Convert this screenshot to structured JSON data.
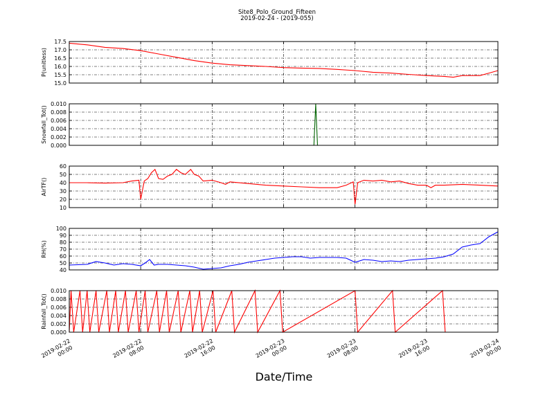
{
  "figure": {
    "title_line1": "Site8_Polo_Ground_Fifteen",
    "title_line2": "2019-02-24 - (2019-055)",
    "xlabel": "Date/Time"
  },
  "chart_data": {
    "type": "line",
    "grid": true,
    "x_ticks": [
      {
        "t": 0,
        "line1": "2019-02-22",
        "line2": "00:00"
      },
      {
        "t": 8,
        "line1": "2019-02-22",
        "line2": "08:00"
      },
      {
        "t": 16,
        "line1": "2019-02-22",
        "line2": "16:00"
      },
      {
        "t": 24,
        "line1": "2019-02-23",
        "line2": "00:00"
      },
      {
        "t": 32,
        "line1": "2019-02-23",
        "line2": "08:00"
      },
      {
        "t": 40,
        "line1": "2019-02-23",
        "line2": "16:00"
      },
      {
        "t": 48,
        "line1": "2019-02-24",
        "line2": "00:00"
      }
    ],
    "panels": [
      {
        "ylabel": "P(unitless)",
        "ylim": [
          15.0,
          17.5
        ],
        "color": "#ff0000",
        "yticks": [
          "15.0",
          "15.5",
          "16.0",
          "16.5",
          "17.0",
          "17.5"
        ],
        "points": [
          [
            0,
            17.4
          ],
          [
            2,
            17.3
          ],
          [
            4,
            17.15
          ],
          [
            6,
            17.08
          ],
          [
            8,
            16.95
          ],
          [
            10,
            16.75
          ],
          [
            12,
            16.55
          ],
          [
            14,
            16.35
          ],
          [
            16,
            16.2
          ],
          [
            18,
            16.1
          ],
          [
            20,
            16.05
          ],
          [
            22,
            16.0
          ],
          [
            24,
            15.93
          ],
          [
            26,
            15.9
          ],
          [
            28,
            15.88
          ],
          [
            30,
            15.82
          ],
          [
            32,
            15.75
          ],
          [
            34,
            15.65
          ],
          [
            36,
            15.6
          ],
          [
            38,
            15.52
          ],
          [
            40,
            15.45
          ],
          [
            42,
            15.4
          ],
          [
            43,
            15.35
          ],
          [
            44,
            15.45
          ],
          [
            46,
            15.45
          ],
          [
            47,
            15.6
          ],
          [
            48,
            15.75
          ]
        ]
      },
      {
        "ylabel": "Snowfall_Tot()",
        "ylim": [
          0,
          0.01
        ],
        "color": "#006400",
        "yticks": [
          "0.000",
          "0.002",
          "0.004",
          "0.006",
          "0.008",
          "0.010"
        ],
        "points": [
          [
            0,
            0
          ],
          [
            27.4,
            0
          ],
          [
            27.6,
            0.01
          ],
          [
            27.8,
            0
          ],
          [
            48,
            0
          ]
        ]
      },
      {
        "ylabel": "AirTF()",
        "ylim": [
          10,
          60
        ],
        "color": "#ff0000",
        "yticks": [
          "10",
          "20",
          "30",
          "40",
          "50",
          "60"
        ],
        "points": [
          [
            0,
            40
          ],
          [
            2,
            40
          ],
          [
            4,
            39.5
          ],
          [
            6,
            40
          ],
          [
            7,
            42
          ],
          [
            7.8,
            43
          ],
          [
            8,
            20
          ],
          [
            8.4,
            42
          ],
          [
            8.8,
            45
          ],
          [
            9.2,
            52
          ],
          [
            9.6,
            56
          ],
          [
            10,
            45
          ],
          [
            10.5,
            44
          ],
          [
            11,
            48
          ],
          [
            11.5,
            50
          ],
          [
            12,
            56
          ],
          [
            12.5,
            52
          ],
          [
            13,
            50
          ],
          [
            13.6,
            56
          ],
          [
            14,
            50
          ],
          [
            14.5,
            48
          ],
          [
            15,
            42
          ],
          [
            16,
            43
          ],
          [
            17,
            40
          ],
          [
            17.5,
            38
          ],
          [
            18,
            41
          ],
          [
            20,
            39
          ],
          [
            22,
            37
          ],
          [
            24,
            36
          ],
          [
            26,
            35
          ],
          [
            28,
            34
          ],
          [
            30,
            34
          ],
          [
            31,
            37
          ],
          [
            31.8,
            41
          ],
          [
            32,
            14
          ],
          [
            32.3,
            40
          ],
          [
            33,
            43
          ],
          [
            34,
            42
          ],
          [
            35,
            43
          ],
          [
            36,
            41
          ],
          [
            37,
            42
          ],
          [
            38,
            39
          ],
          [
            39,
            37
          ],
          [
            40,
            37
          ],
          [
            40.5,
            34
          ],
          [
            41,
            37
          ],
          [
            42,
            37
          ],
          [
            44,
            38
          ],
          [
            46,
            37
          ],
          [
            48,
            36
          ]
        ]
      },
      {
        "ylabel": "RH(%)",
        "ylim": [
          40,
          100
        ],
        "color": "#0000ff",
        "yticks": [
          "40",
          "50",
          "60",
          "70",
          "80",
          "90",
          "100"
        ],
        "points": [
          [
            0,
            47
          ],
          [
            2,
            48
          ],
          [
            3,
            52
          ],
          [
            4,
            50
          ],
          [
            5,
            47
          ],
          [
            6,
            49
          ],
          [
            7,
            48
          ],
          [
            8,
            46
          ],
          [
            8.5,
            50
          ],
          [
            9,
            55
          ],
          [
            9.5,
            47
          ],
          [
            10,
            48
          ],
          [
            11,
            48
          ],
          [
            12,
            47
          ],
          [
            13,
            46
          ],
          [
            14,
            44
          ],
          [
            15,
            41
          ],
          [
            16,
            42
          ],
          [
            17,
            43
          ],
          [
            18,
            46
          ],
          [
            19,
            48
          ],
          [
            20,
            51
          ],
          [
            21,
            53
          ],
          [
            22,
            55
          ],
          [
            23,
            57
          ],
          [
            24,
            58
          ],
          [
            25,
            59
          ],
          [
            26,
            59
          ],
          [
            27,
            57
          ],
          [
            28,
            58
          ],
          [
            29,
            58
          ],
          [
            30,
            58
          ],
          [
            31,
            57
          ],
          [
            32,
            51
          ],
          [
            33,
            55
          ],
          [
            34,
            54
          ],
          [
            35,
            52
          ],
          [
            36,
            53
          ],
          [
            37,
            52
          ],
          [
            38,
            54
          ],
          [
            39,
            55
          ],
          [
            40,
            56
          ],
          [
            41,
            57
          ],
          [
            42,
            59
          ],
          [
            43,
            63
          ],
          [
            44,
            73
          ],
          [
            45,
            76
          ],
          [
            46,
            78
          ],
          [
            47,
            88
          ],
          [
            48,
            95
          ]
        ]
      },
      {
        "ylabel": "Rainfall_Tot()",
        "ylim": [
          0,
          0.01
        ],
        "color": "#ff0000",
        "yticks": [
          "0.000",
          "0.002",
          "0.004",
          "0.006",
          "0.008",
          "0.010"
        ],
        "points": [
          [
            0,
            0
          ],
          [
            0.2,
            0.01
          ],
          [
            0.5,
            0
          ],
          [
            1.2,
            0.01
          ],
          [
            1.5,
            0
          ],
          [
            2,
            0.01
          ],
          [
            2.3,
            0
          ],
          [
            3,
            0.01
          ],
          [
            3.3,
            0
          ],
          [
            4.2,
            0.01
          ],
          [
            4.5,
            0
          ],
          [
            5.2,
            0.01
          ],
          [
            5.5,
            0
          ],
          [
            6.3,
            0.01
          ],
          [
            6.6,
            0
          ],
          [
            7.5,
            0.01
          ],
          [
            7.8,
            0
          ],
          [
            8.5,
            0.01
          ],
          [
            8.8,
            0
          ],
          [
            9.8,
            0.01
          ],
          [
            10.1,
            0
          ],
          [
            10.9,
            0.01
          ],
          [
            11.2,
            0
          ],
          [
            12.2,
            0.01
          ],
          [
            12.5,
            0
          ],
          [
            13.5,
            0.01
          ],
          [
            13.8,
            0
          ],
          [
            14.6,
            0.01
          ],
          [
            14.9,
            0
          ],
          [
            16.1,
            0.01
          ],
          [
            16.4,
            0
          ],
          [
            18.2,
            0.01
          ],
          [
            18.5,
            0
          ],
          [
            20.8,
            0.01
          ],
          [
            21.1,
            0
          ],
          [
            23.6,
            0.01
          ],
          [
            23.9,
            0
          ],
          [
            32,
            0.01
          ],
          [
            32.3,
            0
          ],
          [
            36.2,
            0.01
          ],
          [
            36.5,
            0
          ],
          [
            41.8,
            0.01
          ],
          [
            42.1,
            0
          ],
          [
            48,
            0
          ]
        ]
      }
    ]
  }
}
